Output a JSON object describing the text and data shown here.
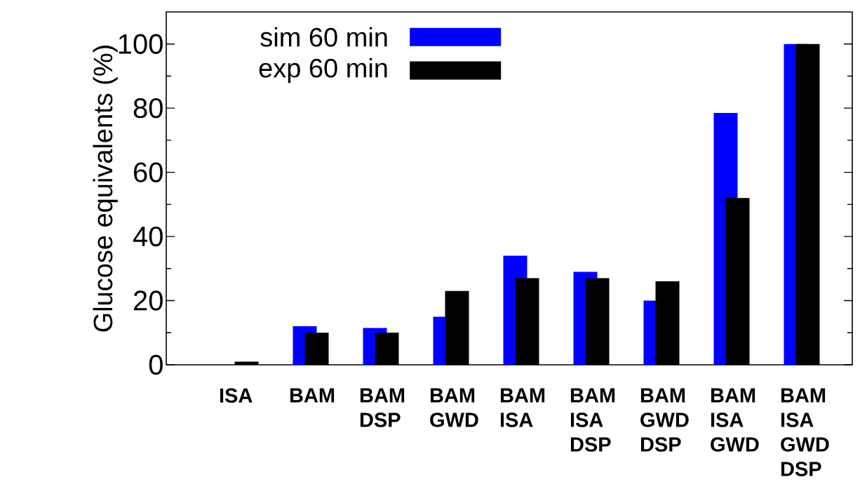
{
  "chart_data": {
    "type": "bar",
    "ylabel": "Glucose equivalents (%)",
    "categories": [
      "ISA",
      "BAM",
      "BAM DSP",
      "BAM GWD",
      "BAM ISA",
      "BAM ISA DSP",
      "BAM GWD DSP",
      "BAM ISA GWD",
      "BAM ISA GWD DSP"
    ],
    "series": [
      {
        "name": "sim 60 min",
        "color": "#0000ff",
        "values": [
          0,
          12,
          11.5,
          15,
          34,
          29,
          20,
          78.5,
          100
        ]
      },
      {
        "name": "exp 60 min",
        "color": "#000000",
        "values": [
          1,
          10,
          10,
          23,
          27,
          27,
          26,
          52,
          100
        ]
      }
    ],
    "ylim": [
      0,
      110
    ],
    "yticks": [
      0,
      20,
      40,
      60,
      80,
      100
    ],
    "legend": "top left"
  }
}
